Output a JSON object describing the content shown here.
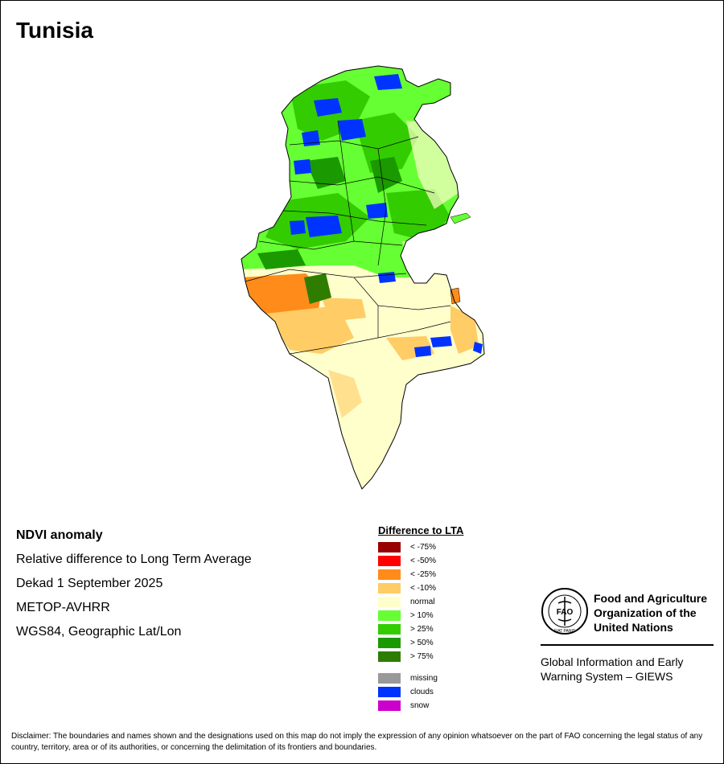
{
  "title": "Tunisia",
  "info": {
    "product": "NDVI anomaly",
    "description": "Relative difference to Long Term Average",
    "period": "Dekad 1 September 2025",
    "sensor": "METOP-AVHRR",
    "projection": "WGS84, Geographic Lat/Lon"
  },
  "legend": {
    "title": "Difference to LTA",
    "items": [
      {
        "label": "< -75%",
        "color": "#990000"
      },
      {
        "label": "< -50%",
        "color": "#ff0000"
      },
      {
        "label": "< -25%",
        "color": "#ff8c1a"
      },
      {
        "label": "< -10%",
        "color": "#ffcc66"
      },
      {
        "label": "normal",
        "color": "#ffffcc"
      },
      {
        "label": "> 10%",
        "color": "#66ff33"
      },
      {
        "label": "> 25%",
        "color": "#33cc00"
      },
      {
        "label": "> 50%",
        "color": "#1a9900"
      },
      {
        "label": "> 75%",
        "color": "#2e7d00"
      }
    ],
    "extra": [
      {
        "label": "missing",
        "color": "#999999"
      },
      {
        "label": "clouds",
        "color": "#0033ff"
      },
      {
        "label": "snow",
        "color": "#cc00cc"
      }
    ]
  },
  "org": {
    "name": "Food and Agriculture Organization of the United Nations",
    "system": "Global Information and Early Warning System – GIEWS",
    "logo_text": "FAO",
    "logo_motto": "FIAT PANIS"
  },
  "disclaimer": "Disclaimer: The boundaries and names shown and the designations used on this map do not imply the expression of any opinion whatsoever on the part of FAO concerning the legal status of any country, territory, area or of its authorities, or concerning the delimitation of its frontiers and boundaries."
}
